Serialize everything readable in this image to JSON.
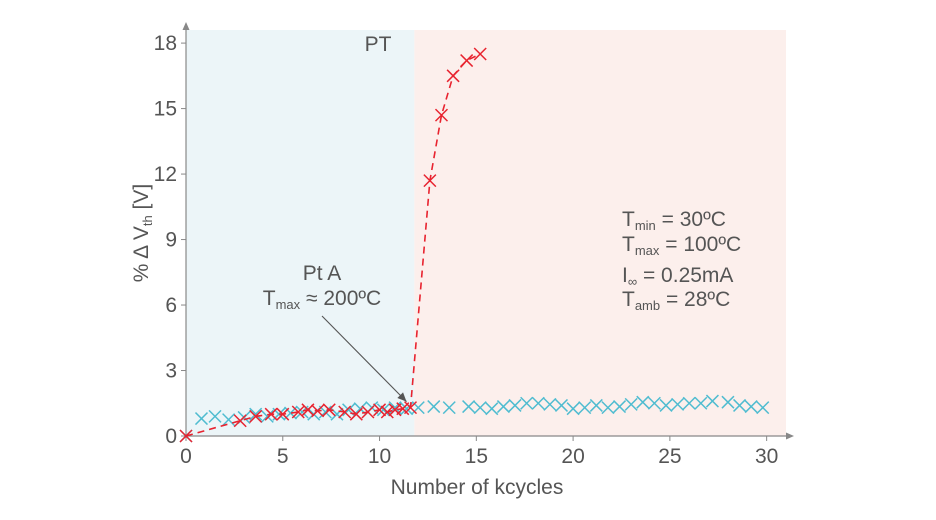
{
  "chart_data": {
    "type": "scatter",
    "xlabel": "Number of kcycles",
    "ylabel": {
      "prefix": "% Δ V",
      "sub": "th",
      "suffix": " [V]"
    },
    "xlim": [
      0,
      31
    ],
    "ylim": [
      0,
      18.6
    ],
    "x_ticks": [
      0,
      5,
      10,
      15,
      20,
      25,
      30
    ],
    "y_ticks": [
      0,
      3,
      6,
      9,
      12,
      15,
      18
    ],
    "regions": [
      {
        "x0": 0,
        "x1": 11.8,
        "color": "#ecf5f8"
      },
      {
        "x0": 11.8,
        "x1": 31,
        "color": "#fcefec"
      }
    ],
    "region_label": "PT",
    "series": [
      {
        "color": "#e8232f",
        "marker": "x",
        "line": "dashed",
        "points": [
          [
            0.0,
            0.0
          ],
          [
            2.8,
            0.7
          ],
          [
            3.6,
            0.9
          ],
          [
            4.4,
            1.0
          ],
          [
            5.0,
            1.0
          ],
          [
            5.8,
            1.1
          ],
          [
            6.3,
            1.2
          ],
          [
            6.8,
            1.15
          ],
          [
            7.4,
            1.2
          ],
          [
            8.2,
            1.1
          ],
          [
            8.8,
            1.0
          ],
          [
            9.4,
            1.1
          ],
          [
            10.0,
            1.2
          ],
          [
            10.4,
            1.1
          ],
          [
            10.8,
            1.2
          ],
          [
            11.2,
            1.25
          ],
          [
            11.6,
            1.3
          ],
          [
            12.6,
            11.7
          ],
          [
            13.2,
            14.7
          ],
          [
            13.8,
            16.5
          ],
          [
            14.5,
            17.2
          ],
          [
            15.2,
            17.5
          ]
        ]
      },
      {
        "color": "#4fbcd0",
        "marker": "x",
        "line": "none",
        "points": [
          [
            0.0,
            0.0
          ],
          [
            0.8,
            0.8
          ],
          [
            1.5,
            0.9
          ],
          [
            2.2,
            0.75
          ],
          [
            3.0,
            0.85
          ],
          [
            3.6,
            1.0
          ],
          [
            4.2,
            0.9
          ],
          [
            4.8,
            1.0
          ],
          [
            5.4,
            1.05
          ],
          [
            6.0,
            1.1
          ],
          [
            6.6,
            1.0
          ],
          [
            7.2,
            1.1
          ],
          [
            7.8,
            1.0
          ],
          [
            8.4,
            1.2
          ],
          [
            9.0,
            1.25
          ],
          [
            9.6,
            1.3
          ],
          [
            10.2,
            1.2
          ],
          [
            10.8,
            1.3
          ],
          [
            11.4,
            1.25
          ],
          [
            12.0,
            1.3
          ],
          [
            12.8,
            1.35
          ],
          [
            13.6,
            1.3
          ],
          [
            14.6,
            1.35
          ],
          [
            15.2,
            1.3
          ],
          [
            15.8,
            1.25
          ],
          [
            16.4,
            1.35
          ],
          [
            17.0,
            1.4
          ],
          [
            17.6,
            1.5
          ],
          [
            18.2,
            1.5
          ],
          [
            18.8,
            1.45
          ],
          [
            19.4,
            1.4
          ],
          [
            20.0,
            1.25
          ],
          [
            20.6,
            1.3
          ],
          [
            21.2,
            1.4
          ],
          [
            21.8,
            1.3
          ],
          [
            22.4,
            1.35
          ],
          [
            23.0,
            1.45
          ],
          [
            23.6,
            1.55
          ],
          [
            24.2,
            1.5
          ],
          [
            24.8,
            1.4
          ],
          [
            25.4,
            1.45
          ],
          [
            26.0,
            1.5
          ],
          [
            26.6,
            1.5
          ],
          [
            27.2,
            1.6
          ],
          [
            28.0,
            1.55
          ],
          [
            28.6,
            1.4
          ],
          [
            29.2,
            1.35
          ],
          [
            29.8,
            1.3
          ]
        ]
      }
    ],
    "annotations": {
      "pt_a": {
        "title": "Pt A",
        "line2_main": "T",
        "line2_sub": "max",
        "line2_rest": " ≈ 200ºC",
        "arrow_to": [
          11.6,
          1.3
        ]
      },
      "conditions": [
        {
          "main": "T",
          "sub": "min",
          "rest": " = 30ºC"
        },
        {
          "main": "T",
          "sub": "max",
          "rest": " = 100ºC"
        },
        {
          "main": "I",
          "sub": "∞",
          "rest": " = 0.25mA"
        },
        {
          "main": "T",
          "sub": "amb",
          "rest": " = 28ºC"
        }
      ]
    }
  }
}
